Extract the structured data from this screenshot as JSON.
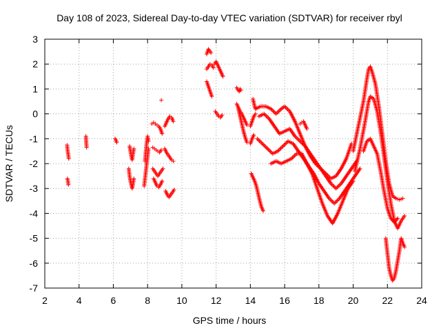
{
  "chart_data": {
    "type": "scatter",
    "title": "Day 108 of 2023, Sidereal Day-to-day VTEC variation (SDTVAR) for receiver rbyl",
    "xlabel": "GPS time / hours",
    "ylabel": "SDTVAR / TECUs",
    "xlim": [
      2,
      24
    ],
    "ylim": [
      -7,
      3
    ],
    "xticks": [
      "2",
      "4",
      "6",
      "8",
      "10",
      "12",
      "14",
      "16",
      "18",
      "20",
      "22",
      "24"
    ],
    "yticks": [
      "3",
      "2",
      "1",
      "0",
      "-1",
      "-2",
      "-3",
      "-4",
      "-5",
      "-6",
      "-7"
    ],
    "grid": true,
    "legend": "none",
    "marker": "+",
    "color": "#ff0000",
    "series": [
      {
        "name": "seg-3.3a",
        "x": [
          3.3,
          3.32,
          3.35,
          3.38,
          3.4
        ],
        "y": [
          -1.25,
          -1.4,
          -1.55,
          -1.7,
          -1.8
        ]
      },
      {
        "name": "seg-3.3b",
        "x": [
          3.32,
          3.35,
          3.38
        ],
        "y": [
          -2.6,
          -2.7,
          -2.85
        ]
      },
      {
        "name": "seg-4.4",
        "x": [
          4.4,
          4.42,
          4.44
        ],
        "y": [
          -0.9,
          -1.15,
          -1.35
        ]
      },
      {
        "name": "seg-6.1",
        "x": [
          6.1,
          6.15,
          6.2
        ],
        "y": [
          -1.0,
          -1.05,
          -1.15
        ]
      },
      {
        "name": "seg-7.1a",
        "x": [
          6.95,
          7.0,
          7.05,
          7.1,
          7.15,
          7.2
        ],
        "y": [
          -1.3,
          -1.5,
          -1.7,
          -1.85,
          -1.6,
          -1.4
        ]
      },
      {
        "name": "seg-7.1b",
        "x": [
          6.9,
          6.95,
          7.0,
          7.05,
          7.1,
          7.15,
          7.2
        ],
        "y": [
          -2.2,
          -2.5,
          -2.7,
          -2.85,
          -3.0,
          -2.8,
          -2.6
        ]
      },
      {
        "name": "seg-7.9a",
        "x": [
          7.8,
          7.85,
          7.9,
          7.95,
          8.0,
          8.05
        ],
        "y": [
          -2.9,
          -2.6,
          -2.3,
          -2.0,
          -1.7,
          -1.4
        ]
      },
      {
        "name": "seg-7.9b",
        "x": [
          7.85,
          7.9,
          7.95,
          8.0,
          8.05
        ],
        "y": [
          -1.9,
          -1.5,
          -1.15,
          -0.9,
          -1.1
        ]
      },
      {
        "name": "seg-8.3a",
        "x": [
          8.25,
          8.35,
          8.45,
          8.55,
          8.65,
          8.75,
          8.85
        ],
        "y": [
          -0.4,
          -0.35,
          -0.4,
          -0.45,
          -0.5,
          -0.6,
          -0.8
        ]
      },
      {
        "name": "seg-8.3b",
        "x": [
          8.3,
          8.4,
          8.5,
          8.6,
          8.7,
          8.8
        ],
        "y": [
          -1.35,
          -1.4,
          -1.45,
          -1.5,
          -1.55,
          -1.45
        ]
      },
      {
        "name": "seg-8.3c",
        "x": [
          8.3,
          8.4,
          8.5,
          8.6,
          8.7,
          8.8,
          8.9
        ],
        "y": [
          -2.2,
          -2.3,
          -2.4,
          -2.5,
          -2.4,
          -2.3,
          -2.2
        ]
      },
      {
        "name": "seg-8.3d",
        "x": [
          8.35,
          8.45,
          8.55,
          8.65,
          8.75,
          8.85
        ],
        "y": [
          -2.6,
          -2.75,
          -2.9,
          -2.95,
          -2.85,
          -2.7
        ]
      },
      {
        "name": "seg-8.8",
        "x": [
          8.8
        ],
        "y": [
          0.55
        ]
      },
      {
        "name": "seg-9.2a",
        "x": [
          9.0,
          9.1,
          9.2,
          9.3,
          9.4,
          9.5
        ],
        "y": [
          -0.5,
          -0.35,
          -0.2,
          -0.1,
          -0.15,
          -0.3
        ]
      },
      {
        "name": "seg-9.2b",
        "x": [
          9.0,
          9.1,
          9.2,
          9.3,
          9.4,
          9.5
        ],
        "y": [
          -1.4,
          -1.55,
          -1.65,
          -1.75,
          -1.85,
          -1.9
        ]
      },
      {
        "name": "seg-9.2c",
        "x": [
          9.05,
          9.15,
          9.25,
          9.35,
          9.45,
          9.55
        ],
        "y": [
          -3.1,
          -3.25,
          -3.35,
          -3.25,
          -3.15,
          -3.05
        ]
      },
      {
        "name": "seg-11.6a",
        "x": [
          11.45,
          11.5,
          11.55,
          11.6,
          11.65,
          11.7
        ],
        "y": [
          2.4,
          2.5,
          2.6,
          2.55,
          2.5,
          2.45
        ]
      },
      {
        "name": "seg-11.6b",
        "x": [
          11.45,
          11.55,
          11.65,
          11.75,
          11.85
        ],
        "y": [
          1.8,
          1.9,
          2.0,
          1.95,
          1.85
        ]
      },
      {
        "name": "seg-11.6c",
        "x": [
          11.45,
          11.55,
          11.65,
          11.75
        ],
        "y": [
          1.3,
          1.1,
          0.9,
          0.7
        ]
      },
      {
        "name": "seg-12.1a",
        "x": [
          11.9,
          12.0,
          12.1,
          12.2,
          12.3,
          12.4
        ],
        "y": [
          2.0,
          2.1,
          1.95,
          1.8,
          1.65,
          1.5
        ]
      },
      {
        "name": "seg-12.1b",
        "x": [
          11.95,
          12.05,
          12.15,
          12.25,
          12.35
        ],
        "y": [
          0.1,
          0.0,
          -0.1,
          -0.15,
          -0.05
        ]
      },
      {
        "name": "seg-13.3a",
        "x": [
          13.2,
          13.25,
          13.3,
          13.35,
          13.4,
          13.45
        ],
        "y": [
          1.05,
          1.0,
          0.95,
          0.9,
          1.0,
          0.95
        ]
      },
      {
        "name": "seg-13.3b",
        "x": [
          13.2,
          13.3,
          13.4,
          13.5,
          13.6,
          13.7,
          13.8
        ],
        "y": [
          0.4,
          0.25,
          0.1,
          0.0,
          -0.15,
          -0.3,
          -0.45
        ]
      },
      {
        "name": "seg-13.3c",
        "x": [
          13.3,
          13.4,
          13.5,
          13.6,
          13.7,
          13.8
        ],
        "y": [
          0.2,
          -0.1,
          -0.4,
          -0.7,
          -0.95,
          -1.15
        ]
      },
      {
        "name": "seg-14.4a",
        "x": [
          14.05,
          14.15,
          14.25,
          14.35,
          14.45,
          14.55,
          14.65,
          14.75
        ],
        "y": [
          -2.4,
          -2.55,
          -2.7,
          -2.9,
          -3.2,
          -3.5,
          -3.75,
          -3.9
        ]
      },
      {
        "name": "seg-14.4b",
        "x": [
          14.0,
          14.1,
          14.2,
          14.3
        ],
        "y": [
          -0.5,
          -0.3,
          -0.1,
          0.0
        ]
      },
      {
        "name": "seg-14.4c",
        "x": [
          14.0,
          14.1,
          14.2
        ],
        "y": [
          -1.2,
          -1.0,
          -0.85
        ]
      },
      {
        "name": "seg-14.4d",
        "x": [
          14.15,
          14.2,
          14.25,
          14.3
        ],
        "y": [
          0.6,
          0.45,
          0.3,
          0.2
        ]
      },
      {
        "name": "seg-top-track",
        "x": [
          14.3,
          14.6,
          14.9,
          15.2,
          15.5,
          15.8,
          16.0,
          16.3,
          16.6,
          16.9,
          17.2,
          17.5,
          17.8,
          18.1,
          18.4,
          18.7,
          19.0,
          19.3,
          19.6,
          19.9
        ],
        "y": [
          0.2,
          0.3,
          0.3,
          0.2,
          0.0,
          0.2,
          0.3,
          0.1,
          -0.3,
          -0.8,
          -1.3,
          -1.7,
          -2.0,
          -2.2,
          -2.4,
          -2.6,
          -2.5,
          -2.2,
          -1.8,
          -1.2
        ]
      },
      {
        "name": "seg-mid-track",
        "x": [
          14.5,
          14.8,
          15.1,
          15.4,
          15.7,
          16.0,
          16.3,
          16.6,
          16.9,
          17.2,
          17.5,
          17.8,
          18.1,
          18.4,
          18.7,
          19.0,
          19.3,
          19.6,
          19.9,
          20.2
        ],
        "y": [
          -0.1,
          0.0,
          -0.2,
          -0.5,
          -0.8,
          -0.7,
          -0.6,
          -0.9,
          -1.1,
          -1.3,
          -1.6,
          -1.9,
          -2.2,
          -2.5,
          -2.8,
          -3.0,
          -2.8,
          -2.5,
          -2.2,
          -1.9
        ]
      },
      {
        "name": "seg-low-track",
        "x": [
          14.4,
          14.7,
          15.0,
          15.3,
          15.6,
          15.9,
          16.2,
          16.5,
          16.8,
          17.1,
          17.4,
          17.7,
          18.0,
          18.3,
          18.6,
          18.9,
          19.2,
          19.5,
          19.8,
          20.1,
          20.4
        ],
        "y": [
          -1.0,
          -1.2,
          -1.4,
          -1.6,
          -1.5,
          -1.3,
          -1.1,
          -1.2,
          -1.5,
          -1.8,
          -2.1,
          -2.4,
          -2.8,
          -3.1,
          -3.4,
          -3.6,
          -3.4,
          -3.1,
          -2.8,
          -2.5,
          -2.2
        ]
      },
      {
        "name": "seg-bottom-track",
        "x": [
          15.2,
          15.5,
          15.8,
          16.1,
          16.4,
          16.7,
          17.0,
          17.3,
          17.6,
          17.9,
          18.2,
          18.5,
          18.8,
          19.1,
          19.4,
          19.7,
          20.0
        ],
        "y": [
          -2.0,
          -1.9,
          -2.0,
          -1.9,
          -1.8,
          -1.6,
          -1.6,
          -2.0,
          -2.4,
          -3.0,
          -3.6,
          -4.1,
          -4.4,
          -4.0,
          -3.5,
          -3.0,
          -2.7
        ]
      },
      {
        "name": "seg-17-spur",
        "x": [
          16.9,
          17.0,
          17.1,
          17.2,
          17.3
        ],
        "y": [
          -0.4,
          -0.35,
          -0.3,
          -0.45,
          -0.6
        ]
      },
      {
        "name": "seg-peak-a",
        "x": [
          20.0,
          20.3,
          20.6,
          20.8,
          20.9,
          21.0,
          21.1,
          21.3,
          21.5,
          21.7,
          21.9,
          22.1,
          22.3,
          22.5,
          22.7,
          22.9
        ],
        "y": [
          -1.5,
          -0.5,
          0.5,
          1.4,
          1.8,
          1.9,
          1.7,
          1.2,
          0.3,
          -0.8,
          -1.9,
          -2.8,
          -3.3,
          -3.4,
          -3.45,
          -3.4
        ]
      },
      {
        "name": "seg-peak-b",
        "x": [
          20.1,
          20.4,
          20.7,
          20.9,
          21.0,
          21.2,
          21.4,
          21.6,
          21.8,
          22.0,
          22.2,
          22.4,
          22.6,
          22.8,
          23.0
        ],
        "y": [
          -2.3,
          -1.4,
          -0.3,
          0.5,
          0.7,
          0.6,
          0.1,
          -0.7,
          -1.7,
          -2.7,
          -3.6,
          -4.3,
          -4.6,
          -4.3,
          -4.1
        ]
      },
      {
        "name": "seg-peak-c",
        "x": [
          20.6,
          20.8,
          21.0,
          21.2,
          21.4,
          21.6,
          21.8,
          22.0,
          22.2,
          22.4,
          22.6
        ],
        "y": [
          -1.5,
          -1.1,
          -1.0,
          -1.3,
          -1.6,
          -2.3,
          -3.1,
          -3.8,
          -4.2,
          -4.35,
          -4.2
        ]
      },
      {
        "name": "seg-deep-dip",
        "x": [
          21.9,
          22.0,
          22.1,
          22.2,
          22.3,
          22.4,
          22.5,
          22.6,
          22.7,
          22.8,
          22.9,
          23.0
        ],
        "y": [
          -5.0,
          -5.6,
          -6.2,
          -6.5,
          -6.7,
          -6.6,
          -6.3,
          -5.9,
          -5.5,
          -5.0,
          -5.2,
          -5.35
        ]
      }
    ]
  }
}
